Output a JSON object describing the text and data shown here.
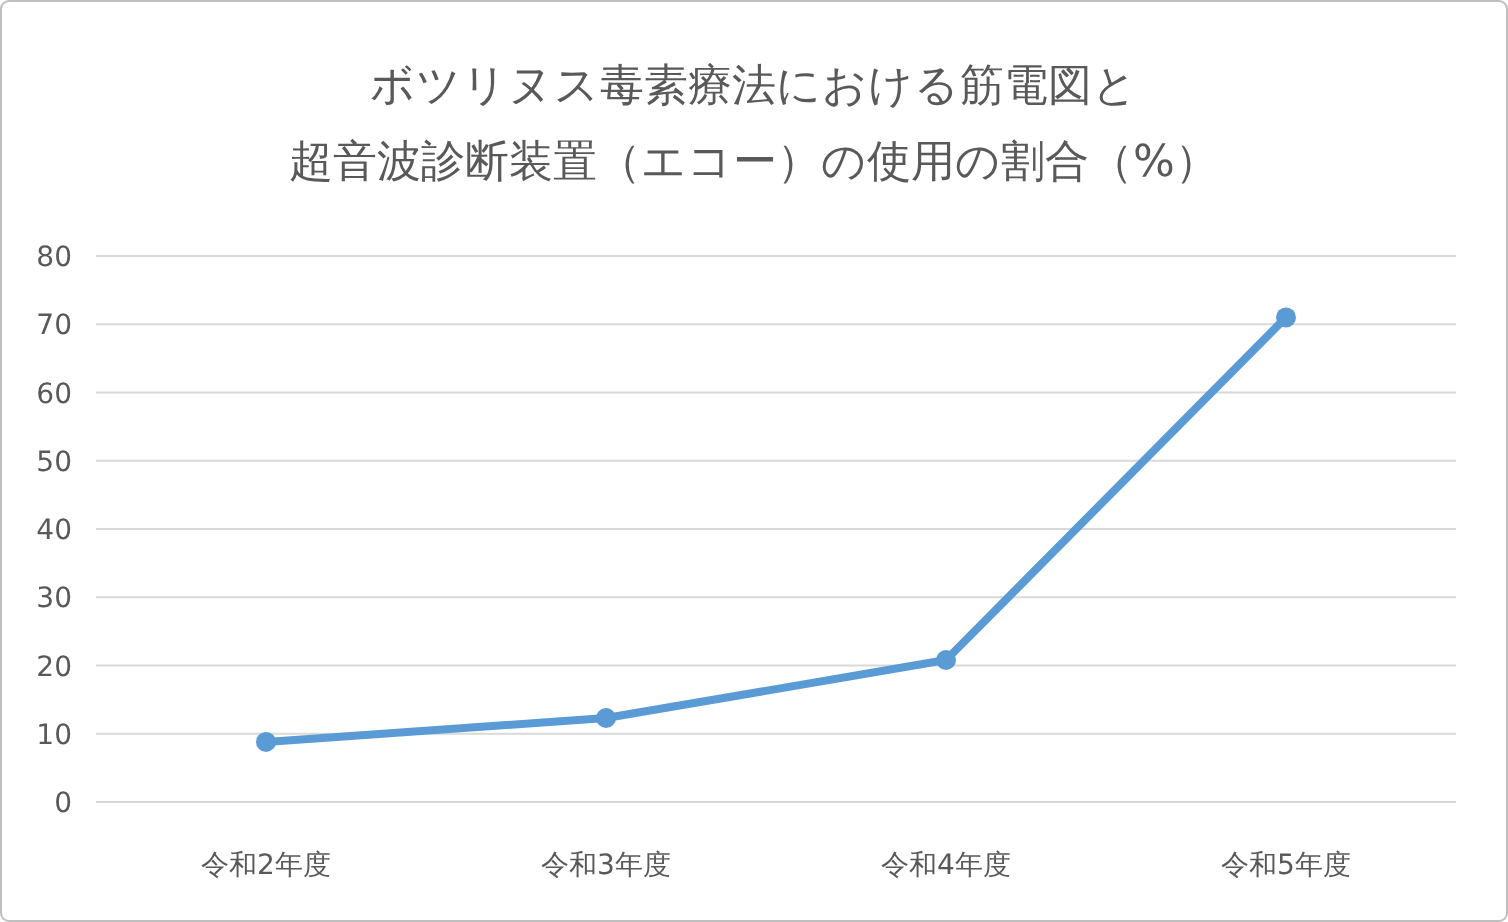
{
  "chart_data": {
    "type": "line",
    "title": "ボツリヌス毒素療法における筋電図と",
    "subtitle": "超音波診断装置（エコー）の使用の割合（%）",
    "categories": [
      "令和2年度",
      "令和3年度",
      "令和4年度",
      "令和5年度"
    ],
    "series": [
      {
        "color": "#5b9bd5",
        "values": [
          8.8,
          12.3,
          20.8,
          71
        ]
      }
    ],
    "ylim": [
      0,
      80
    ],
    "yticks": [
      0,
      10,
      20,
      30,
      40,
      50,
      60,
      70,
      80
    ],
    "grid": "y",
    "marker": "circle",
    "line_style": "solid"
  }
}
